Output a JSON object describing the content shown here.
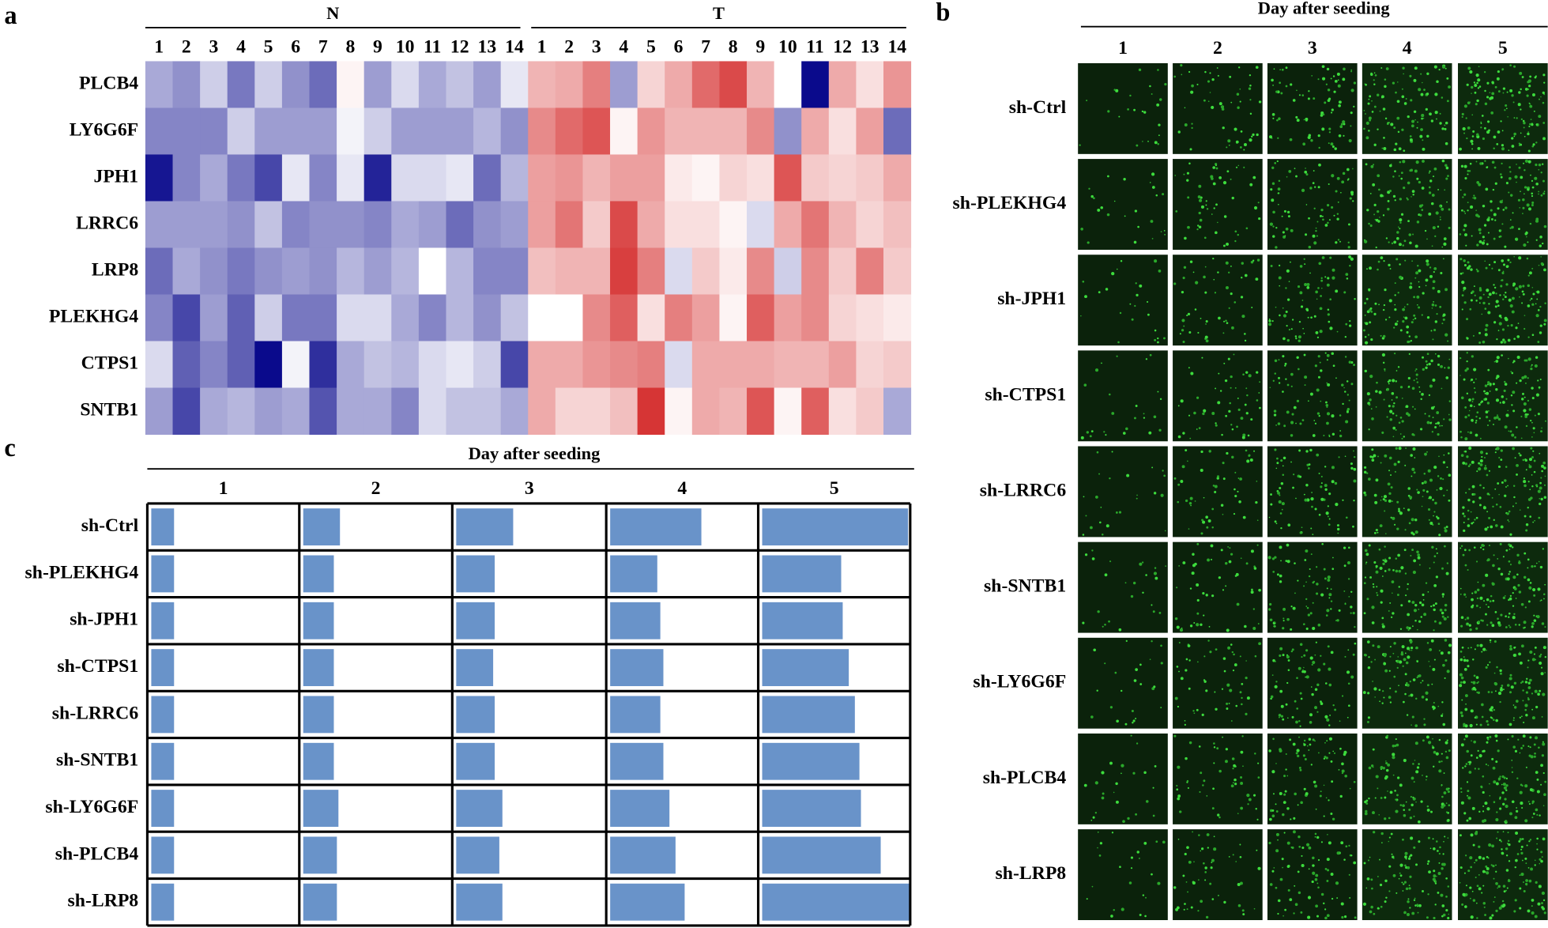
{
  "panel_a": {
    "label": "a",
    "groups": [
      {
        "name": "N",
        "columns": [
          "1",
          "2",
          "3",
          "4",
          "5",
          "6",
          "7",
          "8",
          "9",
          "10",
          "11",
          "12",
          "13",
          "14"
        ]
      },
      {
        "name": "T",
        "columns": [
          "1",
          "2",
          "3",
          "4",
          "5",
          "6",
          "7",
          "8",
          "9",
          "10",
          "11",
          "12",
          "13",
          "14"
        ]
      }
    ],
    "rows": [
      "PLCB4",
      "LY6G6F",
      "JPH1",
      "LRRC6",
      "LRP8",
      "PLEKHG4",
      "CTPS1",
      "SNTB1"
    ],
    "values": [
      [
        -0.35,
        -0.45,
        -0.2,
        -0.55,
        -0.2,
        -0.45,
        -0.6,
        0.05,
        -0.4,
        -0.15,
        -0.35,
        -0.25,
        -0.4,
        -0.1,
        0.35,
        0.4,
        0.6,
        -0.4,
        0.2,
        0.4,
        0.7,
        0.85,
        0.35,
        0,
        -1,
        0.4,
        0.15,
        0.5
      ],
      [
        -0.5,
        -0.5,
        -0.5,
        -0.2,
        -0.4,
        -0.4,
        -0.4,
        -0.05,
        -0.2,
        -0.4,
        -0.4,
        -0.4,
        -0.3,
        -0.45,
        0.55,
        0.7,
        0.8,
        0.05,
        0.5,
        0.35,
        0.35,
        0.35,
        0.55,
        -0.45,
        0.4,
        0.15,
        0.45,
        -0.6
      ],
      [
        -0.95,
        -0.5,
        -0.35,
        -0.55,
        -0.75,
        -0.1,
        -0.5,
        -0.1,
        -0.9,
        -0.15,
        -0.15,
        -0.1,
        -0.6,
        -0.3,
        0.45,
        0.5,
        0.35,
        0.45,
        0.45,
        0.1,
        0.05,
        0.2,
        0.15,
        0.8,
        0.25,
        0.2,
        0.25,
        0.4
      ],
      [
        -0.4,
        -0.4,
        -0.4,
        -0.45,
        -0.25,
        -0.5,
        -0.45,
        -0.45,
        -0.5,
        -0.35,
        -0.4,
        -0.6,
        -0.45,
        -0.4,
        0.45,
        0.65,
        0.25,
        0.85,
        0.4,
        0.15,
        0.15,
        0.05,
        -0.15,
        0.4,
        0.65,
        0.35,
        0.2,
        0.3
      ],
      [
        -0.6,
        -0.35,
        -0.45,
        -0.55,
        -0.45,
        -0.4,
        -0.45,
        -0.3,
        -0.4,
        -0.3,
        0,
        -0.3,
        -0.5,
        -0.5,
        0.3,
        0.35,
        0.35,
        0.9,
        0.6,
        -0.15,
        0.25,
        0.1,
        0.55,
        -0.2,
        0.55,
        0.25,
        0.6,
        0.25
      ],
      [
        -0.5,
        -0.75,
        -0.4,
        -0.65,
        -0.2,
        -0.55,
        -0.55,
        -0.15,
        -0.15,
        -0.35,
        -0.5,
        -0.3,
        -0.45,
        -0.25,
        0,
        0,
        0.55,
        0.75,
        0.15,
        0.6,
        0.45,
        0.05,
        0.75,
        0.45,
        0.55,
        0.2,
        0.15,
        0.1
      ],
      [
        -0.15,
        -0.65,
        -0.5,
        -0.65,
        -1,
        -0.05,
        -0.85,
        -0.35,
        -0.25,
        -0.3,
        -0.15,
        -0.1,
        -0.2,
        -0.75,
        0.4,
        0.4,
        0.5,
        0.55,
        0.6,
        -0.15,
        0.4,
        0.4,
        0.4,
        0.35,
        0.35,
        0.45,
        0.2,
        0.25
      ],
      [
        -0.4,
        -0.75,
        -0.35,
        -0.3,
        -0.4,
        -0.35,
        -0.7,
        -0.35,
        -0.35,
        -0.5,
        -0.15,
        -0.25,
        -0.25,
        -0.35,
        0.4,
        0.2,
        0.2,
        0.3,
        0.95,
        0.05,
        0.4,
        0.35,
        0.8,
        0.05,
        0.75,
        0.15,
        0.25,
        -0.35
      ]
    ],
    "colors": {
      "low": "#0a0a8c",
      "mid": "#ffffff",
      "high": "#d42a2a"
    }
  },
  "panel_b": {
    "label": "b",
    "title": "Day after seeding",
    "columns": [
      "1",
      "2",
      "3",
      "4",
      "5"
    ],
    "rows": [
      "sh-Ctrl",
      "sh-PLEKHG4",
      "sh-JPH1",
      "sh-CTPS1",
      "sh-LRRC6",
      "sh-SNTB1",
      "sh-LY6G6F",
      "sh-PLCB4",
      "sh-LRP8"
    ]
  },
  "panel_c": {
    "label": "c",
    "title": "Day after seeding",
    "columns": [
      "1",
      "2",
      "3",
      "4",
      "5"
    ],
    "rows": [
      "sh-Ctrl",
      "sh-PLEKHG4",
      "sh-JPH1",
      "sh-CTPS1",
      "sh-LRRC6",
      "sh-SNTB1",
      "sh-LY6G6F",
      "sh-PLCB4",
      "sh-LRP8"
    ],
    "values": [
      [
        0.15,
        0.24,
        0.37,
        0.6,
        0.96
      ],
      [
        0.15,
        0.2,
        0.25,
        0.31,
        0.52
      ],
      [
        0.15,
        0.2,
        0.25,
        0.33,
        0.53
      ],
      [
        0.15,
        0.2,
        0.24,
        0.35,
        0.57
      ],
      [
        0.15,
        0.2,
        0.25,
        0.33,
        0.61
      ],
      [
        0.15,
        0.2,
        0.25,
        0.35,
        0.64
      ],
      [
        0.15,
        0.23,
        0.3,
        0.39,
        0.65
      ],
      [
        0.15,
        0.22,
        0.28,
        0.43,
        0.78
      ],
      [
        0.15,
        0.22,
        0.3,
        0.49,
        0.98
      ]
    ],
    "color": "#6993c9"
  }
}
